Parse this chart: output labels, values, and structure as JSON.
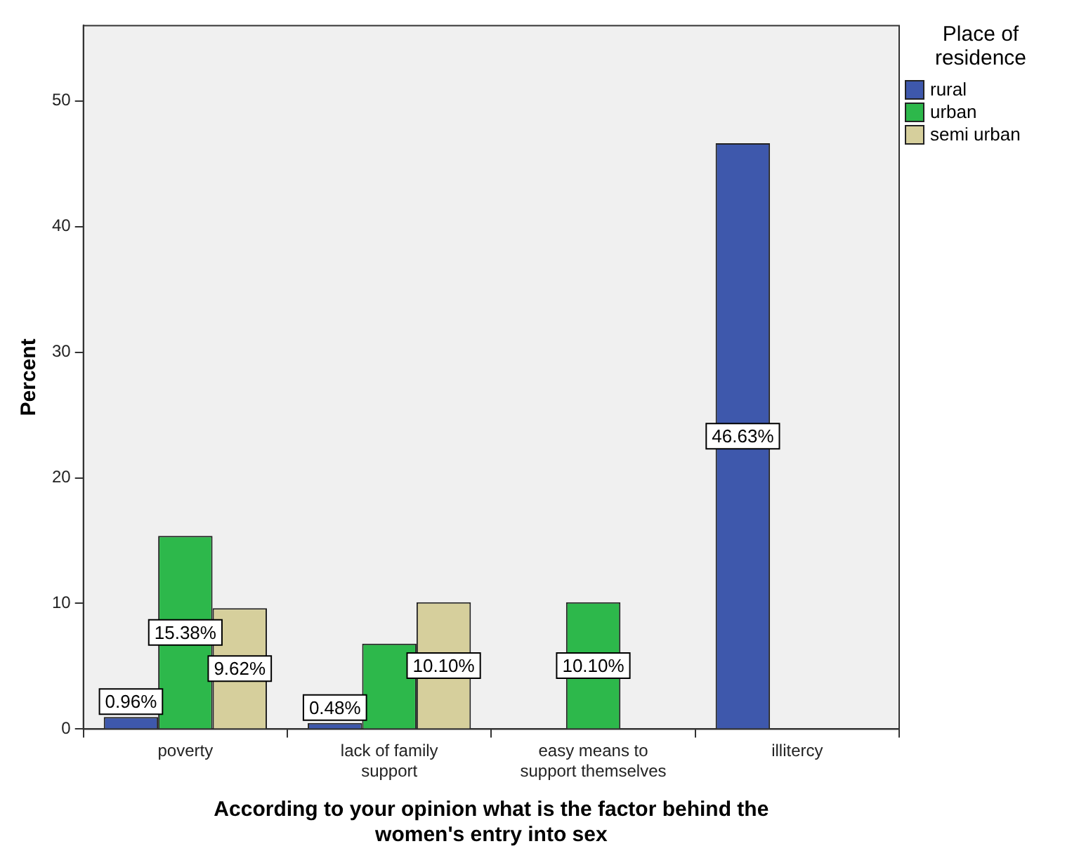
{
  "chart_data": {
    "type": "bar",
    "xlabel": "According to your opinion what is the factor behind the women's entry into sex",
    "ylabel": "Percent",
    "legend_title": "Place of residence",
    "legend": "right",
    "grid": false,
    "categories": [
      "poverty",
      "lack of family support",
      "easy means to support themselves",
      "illitercy"
    ],
    "series": [
      {
        "name": "rural",
        "color": "#3e58ac",
        "values": [
          0.96,
          0.48,
          null,
          46.63
        ],
        "value_labels": [
          "0.96%",
          "0.48%",
          null,
          "46.63%"
        ]
      },
      {
        "name": "urban",
        "color": "#2db84b",
        "values": [
          15.38,
          6.8,
          10.1,
          null
        ],
        "value_labels": [
          "15.38%",
          null,
          "10.10%",
          null
        ]
      },
      {
        "name": "semi urban",
        "color": "#d6cf9c",
        "values": [
          9.62,
          10.1,
          null,
          null
        ],
        "value_labels": [
          "9.62%",
          "10.10%",
          null,
          null
        ]
      }
    ],
    "ylim": [
      0,
      56
    ],
    "yticks": [
      0,
      10,
      20,
      30,
      40,
      50
    ]
  }
}
